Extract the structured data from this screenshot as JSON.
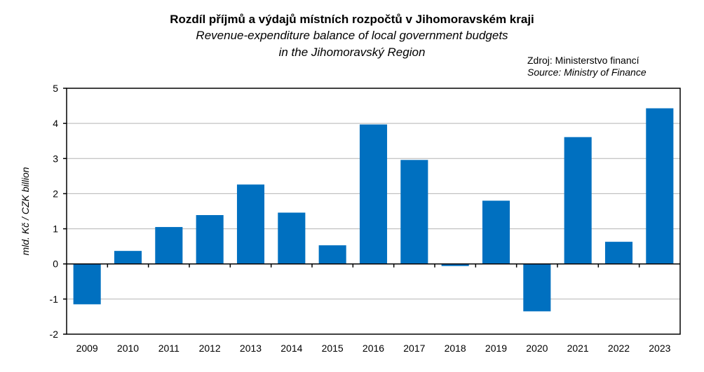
{
  "chart_data": {
    "type": "bar",
    "title": "Rozdíl příjmů a výdajů místních rozpočtů v Jihomoravském kraji",
    "subtitle_line1": "Revenue-expenditure balance of local government budgets",
    "subtitle_line2": "in the Jihomoravský Region",
    "source_cz": "Zdroj:  Ministerstvo  financí",
    "source_en": "Source: Ministry of Finance",
    "xlabel": "",
    "ylabel": "mld. Kč / CZK billion",
    "ylim": [
      -2,
      5
    ],
    "yticks": [
      "-2",
      "-1",
      "0",
      "1",
      "2",
      "3",
      "4",
      "5"
    ],
    "grid": true,
    "bar_color": "#0070C0",
    "categories": [
      "2009",
      "2010",
      "2011",
      "2012",
      "2013",
      "2014",
      "2015",
      "2016",
      "2017",
      "2018",
      "2019",
      "2020",
      "2021",
      "2022",
      "2023"
    ],
    "values": [
      -1.15,
      0.37,
      1.05,
      1.39,
      2.26,
      1.46,
      0.53,
      3.97,
      2.96,
      -0.06,
      1.8,
      -1.35,
      3.61,
      0.63,
      4.43
    ]
  }
}
